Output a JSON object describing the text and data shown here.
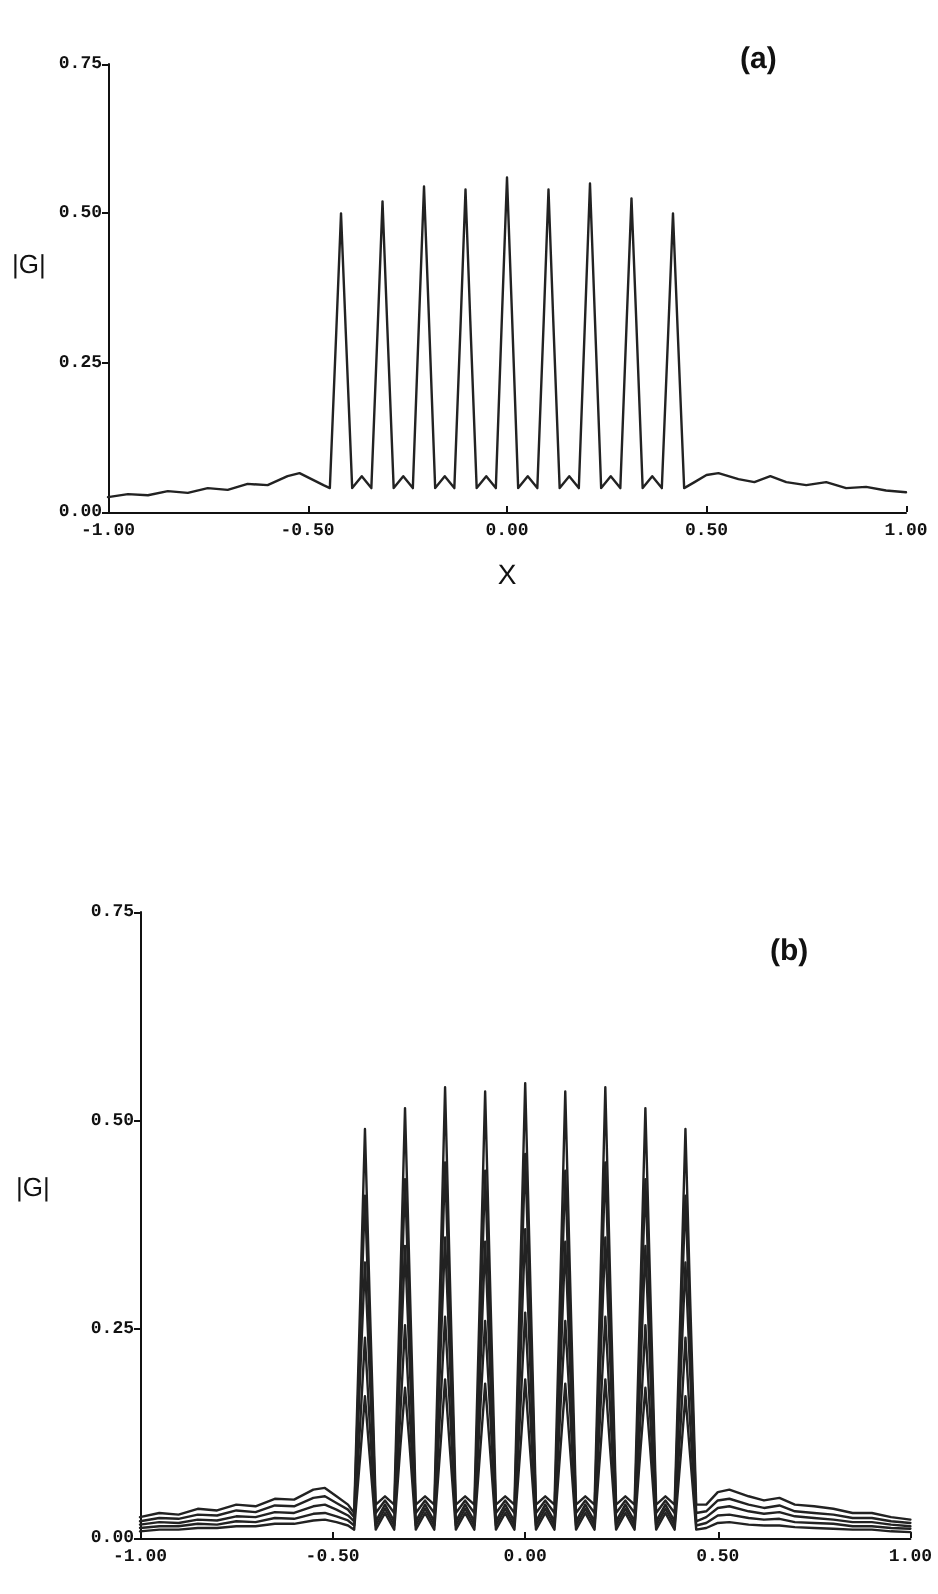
{
  "chart_data": [
    {
      "type": "line",
      "ylabel": "|G|",
      "xlabel": "X",
      "annotations": [
        "(a)"
      ],
      "marker": "none",
      "line_style": "solid",
      "grid": false,
      "xlim": [
        -1,
        1
      ],
      "xticks": [
        {
          "value": -1,
          "label": "-1.00"
        },
        {
          "value": -0.5,
          "label": "-0.50"
        },
        {
          "value": 0,
          "label": "0.00"
        },
        {
          "value": 0.5,
          "label": "0.50"
        },
        {
          "value": 1,
          "label": "1.00"
        }
      ],
      "ylim": [
        0,
        0.75
      ],
      "yticks": [
        {
          "value": 0,
          "label": "0.00"
        },
        {
          "value": 0.25,
          "label": "0.25"
        },
        {
          "value": 0.5,
          "label": "0.50"
        },
        {
          "value": 0.75,
          "label": "0.75"
        }
      ],
      "x": [
        -1,
        -0.95,
        -0.9,
        -0.85,
        -0.8,
        -0.75,
        -0.7,
        -0.65,
        -0.6,
        -0.55,
        -0.52,
        -0.49,
        -0.46,
        -0.444,
        -0.428,
        -0.416,
        -0.404,
        -0.388,
        -0.364,
        -0.34,
        -0.324,
        -0.312,
        -0.3,
        -0.284,
        -0.26,
        -0.236,
        -0.22,
        -0.208,
        -0.196,
        -0.18,
        -0.156,
        -0.132,
        -0.116,
        -0.104,
        -0.092,
        -0.076,
        -0.052,
        -0.028,
        -0.012,
        0,
        0.012,
        0.028,
        0.052,
        0.076,
        0.092,
        0.104,
        0.116,
        0.132,
        0.156,
        0.18,
        0.196,
        0.208,
        0.22,
        0.236,
        0.26,
        0.284,
        0.3,
        0.312,
        0.324,
        0.34,
        0.364,
        0.388,
        0.404,
        0.416,
        0.428,
        0.444,
        0.47,
        0.5,
        0.53,
        0.58,
        0.62,
        0.66,
        0.7,
        0.75,
        0.8,
        0.85,
        0.9,
        0.95,
        1
      ],
      "series": [
        {
          "color": "#222222",
          "values": [
            0.025,
            0.03,
            0.028,
            0.035,
            0.032,
            0.04,
            0.037,
            0.047,
            0.045,
            0.06,
            0.065,
            0.055,
            0.045,
            0.04,
            0.3,
            0.5,
            0.3,
            0.04,
            0.06,
            0.04,
            0.31,
            0.52,
            0.31,
            0.04,
            0.06,
            0.04,
            0.33,
            0.545,
            0.33,
            0.04,
            0.06,
            0.04,
            0.32,
            0.54,
            0.32,
            0.04,
            0.06,
            0.04,
            0.34,
            0.56,
            0.34,
            0.04,
            0.06,
            0.04,
            0.32,
            0.54,
            0.32,
            0.04,
            0.06,
            0.04,
            0.33,
            0.55,
            0.33,
            0.04,
            0.06,
            0.04,
            0.32,
            0.525,
            0.32,
            0.04,
            0.06,
            0.04,
            0.3,
            0.5,
            0.3,
            0.04,
            0.05,
            0.062,
            0.065,
            0.055,
            0.05,
            0.06,
            0.05,
            0.045,
            0.05,
            0.04,
            0.042,
            0.036,
            0.033
          ]
        }
      ]
    },
    {
      "type": "line",
      "ylabel": "|G|",
      "annotations": [
        "(b)"
      ],
      "marker": "none",
      "line_style": "solid",
      "grid": false,
      "xlim": [
        -1,
        1
      ],
      "xticks": [
        {
          "value": -1,
          "label": "-1.00"
        },
        {
          "value": -0.5,
          "label": "-0.50"
        },
        {
          "value": 0,
          "label": "0.00"
        },
        {
          "value": 0.5,
          "label": "0.50"
        },
        {
          "value": 1,
          "label": "1.00"
        }
      ],
      "ylim": [
        0,
        0.75
      ],
      "yticks": [
        {
          "value": 0,
          "label": "0.00"
        },
        {
          "value": 0.25,
          "label": "0.25"
        },
        {
          "value": 0.5,
          "label": "0.50"
        },
        {
          "value": 0.75,
          "label": "0.75"
        }
      ],
      "x": [
        -1,
        -0.95,
        -0.9,
        -0.85,
        -0.8,
        -0.75,
        -0.7,
        -0.65,
        -0.6,
        -0.55,
        -0.52,
        -0.49,
        -0.46,
        -0.444,
        -0.428,
        -0.416,
        -0.404,
        -0.388,
        -0.364,
        -0.34,
        -0.324,
        -0.312,
        -0.3,
        -0.284,
        -0.26,
        -0.236,
        -0.22,
        -0.208,
        -0.196,
        -0.18,
        -0.156,
        -0.132,
        -0.116,
        -0.104,
        -0.092,
        -0.076,
        -0.052,
        -0.028,
        -0.012,
        0,
        0.012,
        0.028,
        0.052,
        0.076,
        0.092,
        0.104,
        0.116,
        0.132,
        0.156,
        0.18,
        0.196,
        0.208,
        0.22,
        0.236,
        0.26,
        0.284,
        0.3,
        0.312,
        0.324,
        0.34,
        0.364,
        0.388,
        0.404,
        0.416,
        0.428,
        0.444,
        0.47,
        0.5,
        0.53,
        0.58,
        0.62,
        0.66,
        0.7,
        0.75,
        0.8,
        0.85,
        0.9,
        0.95,
        1
      ],
      "series": [
        {
          "color": "#222222",
          "values": [
            0.025,
            0.03,
            0.028,
            0.035,
            0.033,
            0.04,
            0.038,
            0.047,
            0.046,
            0.058,
            0.06,
            0.05,
            0.04,
            0.03,
            0.29,
            0.49,
            0.29,
            0.04,
            0.05,
            0.04,
            0.31,
            0.515,
            0.31,
            0.04,
            0.05,
            0.04,
            0.32,
            0.54,
            0.32,
            0.04,
            0.05,
            0.04,
            0.32,
            0.535,
            0.32,
            0.04,
            0.05,
            0.04,
            0.33,
            0.545,
            0.33,
            0.04,
            0.05,
            0.04,
            0.32,
            0.535,
            0.32,
            0.04,
            0.05,
            0.04,
            0.32,
            0.54,
            0.32,
            0.04,
            0.05,
            0.04,
            0.31,
            0.515,
            0.31,
            0.04,
            0.05,
            0.04,
            0.29,
            0.49,
            0.29,
            0.04,
            0.04,
            0.055,
            0.058,
            0.05,
            0.045,
            0.048,
            0.04,
            0.038,
            0.035,
            0.03,
            0.03,
            0.025,
            0.022
          ]
        },
        {
          "color": "#222222",
          "values": [
            0.02,
            0.024,
            0.023,
            0.028,
            0.027,
            0.033,
            0.031,
            0.039,
            0.038,
            0.048,
            0.05,
            0.042,
            0.034,
            0.025,
            0.25,
            0.41,
            0.25,
            0.03,
            0.045,
            0.03,
            0.26,
            0.43,
            0.26,
            0.03,
            0.045,
            0.03,
            0.27,
            0.45,
            0.27,
            0.03,
            0.045,
            0.03,
            0.26,
            0.44,
            0.26,
            0.03,
            0.045,
            0.03,
            0.28,
            0.46,
            0.28,
            0.03,
            0.045,
            0.03,
            0.26,
            0.44,
            0.26,
            0.03,
            0.045,
            0.03,
            0.27,
            0.45,
            0.27,
            0.03,
            0.045,
            0.03,
            0.26,
            0.43,
            0.26,
            0.03,
            0.045,
            0.03,
            0.25,
            0.41,
            0.25,
            0.03,
            0.032,
            0.045,
            0.047,
            0.04,
            0.036,
            0.039,
            0.032,
            0.03,
            0.028,
            0.024,
            0.024,
            0.02,
            0.018
          ]
        },
        {
          "color": "#222222",
          "values": [
            0.016,
            0.019,
            0.018,
            0.022,
            0.021,
            0.026,
            0.025,
            0.031,
            0.03,
            0.038,
            0.04,
            0.034,
            0.027,
            0.02,
            0.2,
            0.33,
            0.2,
            0.02,
            0.04,
            0.02,
            0.21,
            0.35,
            0.21,
            0.02,
            0.04,
            0.02,
            0.22,
            0.36,
            0.22,
            0.02,
            0.04,
            0.02,
            0.21,
            0.355,
            0.21,
            0.02,
            0.04,
            0.02,
            0.22,
            0.37,
            0.22,
            0.02,
            0.04,
            0.02,
            0.21,
            0.355,
            0.21,
            0.02,
            0.04,
            0.02,
            0.22,
            0.36,
            0.22,
            0.02,
            0.04,
            0.02,
            0.21,
            0.35,
            0.21,
            0.02,
            0.04,
            0.02,
            0.2,
            0.33,
            0.2,
            0.02,
            0.025,
            0.036,
            0.038,
            0.032,
            0.029,
            0.031,
            0.026,
            0.024,
            0.022,
            0.019,
            0.019,
            0.016,
            0.014
          ]
        },
        {
          "color": "#222222",
          "values": [
            0.012,
            0.014,
            0.014,
            0.017,
            0.016,
            0.02,
            0.019,
            0.024,
            0.023,
            0.029,
            0.03,
            0.026,
            0.021,
            0.015,
            0.14,
            0.24,
            0.14,
            0.015,
            0.035,
            0.015,
            0.15,
            0.255,
            0.15,
            0.015,
            0.035,
            0.015,
            0.16,
            0.265,
            0.16,
            0.015,
            0.035,
            0.015,
            0.16,
            0.26,
            0.16,
            0.015,
            0.035,
            0.015,
            0.16,
            0.27,
            0.16,
            0.015,
            0.035,
            0.015,
            0.16,
            0.26,
            0.16,
            0.015,
            0.035,
            0.015,
            0.16,
            0.265,
            0.16,
            0.015,
            0.035,
            0.015,
            0.15,
            0.255,
            0.15,
            0.015,
            0.035,
            0.015,
            0.14,
            0.24,
            0.14,
            0.015,
            0.018,
            0.027,
            0.028,
            0.024,
            0.022,
            0.023,
            0.019,
            0.018,
            0.017,
            0.014,
            0.014,
            0.012,
            0.011
          ]
        },
        {
          "color": "#222222",
          "values": [
            0.008,
            0.01,
            0.01,
            0.012,
            0.012,
            0.014,
            0.014,
            0.017,
            0.017,
            0.021,
            0.022,
            0.019,
            0.015,
            0.01,
            0.1,
            0.17,
            0.1,
            0.01,
            0.03,
            0.01,
            0.11,
            0.18,
            0.11,
            0.01,
            0.03,
            0.01,
            0.11,
            0.19,
            0.11,
            0.01,
            0.03,
            0.01,
            0.11,
            0.185,
            0.11,
            0.01,
            0.03,
            0.01,
            0.11,
            0.19,
            0.11,
            0.01,
            0.03,
            0.01,
            0.11,
            0.185,
            0.11,
            0.01,
            0.03,
            0.01,
            0.11,
            0.19,
            0.11,
            0.01,
            0.03,
            0.01,
            0.11,
            0.18,
            0.11,
            0.01,
            0.03,
            0.01,
            0.1,
            0.17,
            0.1,
            0.01,
            0.012,
            0.018,
            0.019,
            0.016,
            0.015,
            0.015,
            0.013,
            0.012,
            0.011,
            0.01,
            0.01,
            0.008,
            0.007
          ]
        }
      ]
    }
  ]
}
